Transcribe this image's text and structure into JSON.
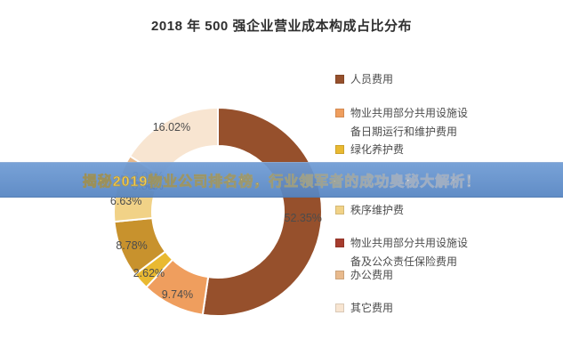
{
  "title": "2018 年 500 强企业营业成本构成占比分布",
  "banner": {
    "text": "揭秘2019物业公司排名榜，行业领军者的成功奥秘大解析！",
    "bg_color": "#5b8cc8",
    "text_color_start": "#f7c73e",
    "text_color_end": "#ffffff"
  },
  "chart_data": {
    "type": "pie",
    "donut": true,
    "title": "2018 年 500 强企业营业成本构成占比分布",
    "legend_position": "right",
    "start_angle": "top, clockwise",
    "segments": [
      {
        "name": "人员费用",
        "value": 52.35,
        "label": "52.35%",
        "color": "#96502c"
      },
      {
        "name": "物业共用部分共用设施设备日期运行和维护费用",
        "value": 9.74,
        "label": "9.74%",
        "color": "#ef9e5e"
      },
      {
        "name": "绿化养护费",
        "value": 2.62,
        "label": "2.62%",
        "color": "#e9b931"
      },
      {
        "name": "",
        "value": 8.78,
        "label": "8.78%",
        "color": "#c8922d",
        "legend_hidden": true
      },
      {
        "name": "秩序维护费",
        "value": 6.63,
        "label": "6.63%",
        "color": "#f1d287"
      },
      {
        "name": "物业共用部分共用设施设备及公众责任保险费用",
        "value": 0.85,
        "label": "0.85%",
        "color": "#a63c2e",
        "label_behind_banner": true
      },
      {
        "name": "办公费用",
        "value": 3.01,
        "label": "3.01%",
        "color": "#e8ba8d",
        "label_behind_banner": true
      },
      {
        "name": "其它费用",
        "value": 16.02,
        "label": "16.02%",
        "color": "#f8e5d1"
      }
    ]
  },
  "legend": {
    "items": [
      {
        "color": "#96502c",
        "lines": [
          "人员费用"
        ]
      },
      {
        "color": "#ef9e5e",
        "lines": [
          "物业共用部分共用设施设",
          "备日期运行和维护费用"
        ]
      },
      {
        "color": "#e9b931",
        "lines": [
          "绿化养护费"
        ]
      },
      {
        "color": "#f1d287",
        "lines": [
          "秩序维护费"
        ]
      },
      {
        "color": "#a63c2e",
        "lines": [
          "物业共用部分共用设施设",
          "备及公众责任保险费用"
        ]
      },
      {
        "color": "#e8ba8d",
        "lines": [
          "办公费用"
        ]
      },
      {
        "color": "#f8e5d1",
        "lines": [
          "其它费用"
        ]
      }
    ]
  }
}
